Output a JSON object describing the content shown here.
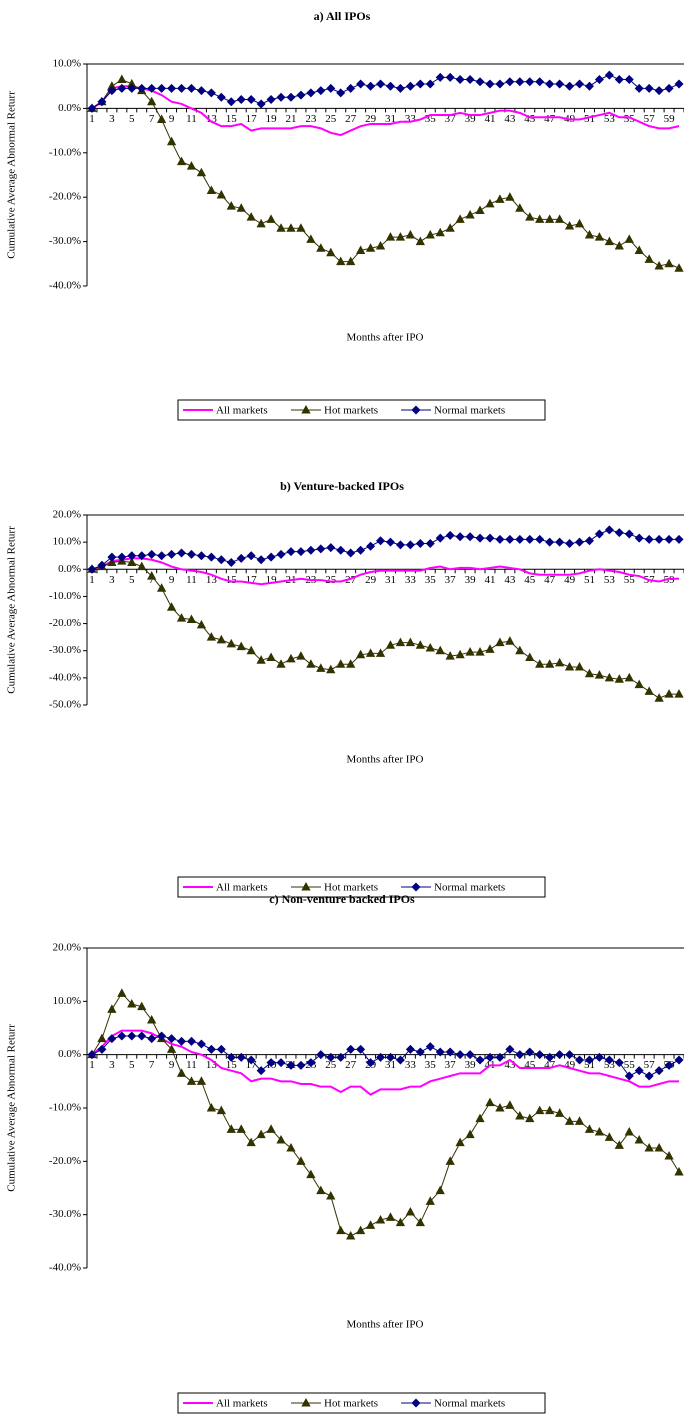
{
  "chart_data": [
    {
      "type": "line",
      "title": "a) All IPOs",
      "y_label": "Cumulative Average Abnormal Returr",
      "x_label": "Months after IPO",
      "legend": "bottom",
      "categories": [
        "1",
        null,
        "3",
        null,
        "5",
        null,
        "7",
        null,
        "9",
        null,
        "11",
        null,
        "13",
        null,
        "15",
        null,
        "17",
        null,
        "19",
        null,
        "21",
        null,
        "23",
        null,
        "25",
        null,
        "27",
        null,
        "29",
        null,
        "31",
        null,
        "33",
        null,
        "35",
        null,
        "37",
        null,
        "39",
        null,
        "41",
        null,
        "43",
        null,
        "45",
        null,
        "47",
        null,
        "49",
        null,
        "51",
        null,
        "53",
        null,
        "55",
        null,
        "57",
        null,
        "59",
        null
      ],
      "ylim": [
        -40,
        10
      ],
      "yticks": [
        {
          "value": 10,
          "label": "10.0%"
        },
        {
          "value": 0,
          "label": "0.0%"
        },
        {
          "value": -10,
          "label": "-10.0%"
        },
        {
          "value": -20,
          "label": "-20.0%"
        },
        {
          "value": -30,
          "label": "-30.0%"
        },
        {
          "value": -40,
          "label": "-40.0%"
        }
      ],
      "series": [
        {
          "name": "All markets",
          "color": "#ff00ff",
          "marker": "none",
          "values": [
            0,
            1.5,
            4.5,
            5,
            5,
            4.5,
            4,
            3,
            1.5,
            1,
            0,
            -1,
            -3,
            -4,
            -4,
            -3.5,
            -5,
            -4.5,
            -4.5,
            -4.5,
            -4.5,
            -4,
            -4,
            -4.5,
            -5.5,
            -6,
            -5,
            -4,
            -3.5,
            -3.5,
            -3.5,
            -3,
            -3,
            -2.5,
            -1.5,
            -1.5,
            -1.5,
            -1,
            -1.5,
            -1.5,
            -1,
            -0.5,
            -0.5,
            -1,
            -2,
            -2,
            -2,
            -2,
            -2.5,
            -2.5,
            -2,
            -1.5,
            -1,
            -2,
            -2,
            -3,
            -4,
            -4.5,
            -4.5,
            -4
          ]
        },
        {
          "name": "Hot markets",
          "color": "#333300",
          "marker": "triangle",
          "values": [
            0,
            1.5,
            5,
            6.5,
            5.5,
            4,
            1.5,
            -2.5,
            -7.5,
            -12,
            -13,
            -14.5,
            -18.5,
            -19.5,
            -22,
            -22.5,
            -24.5,
            -26,
            -25,
            -27,
            -27,
            -27,
            -29.5,
            -31.5,
            -32.5,
            -34.5,
            -34.5,
            -32,
            -31.5,
            -31,
            -29,
            -29,
            -28.5,
            -30,
            -28.5,
            -28,
            -27,
            -25,
            -24,
            -23,
            -21.5,
            -20.5,
            -20,
            -22.5,
            -24.5,
            -25,
            -25,
            -25,
            -26.5,
            -26,
            -28.5,
            -29,
            -30,
            -31,
            -29.5,
            -32,
            -34,
            -35.5,
            -35,
            -36
          ]
        },
        {
          "name": "Normal markets",
          "color": "#000080",
          "marker": "diamond",
          "values": [
            0,
            1.5,
            4,
            4.5,
            4.5,
            4.5,
            4.5,
            4.5,
            4.5,
            4.5,
            4.5,
            4,
            3.5,
            2.5,
            1.5,
            2,
            2,
            1,
            2,
            2.5,
            2.5,
            3,
            3.5,
            4,
            4.5,
            3.5,
            4.5,
            5.5,
            5,
            5.5,
            5,
            4.5,
            5,
            5.5,
            5.5,
            7,
            7,
            6.5,
            6.5,
            6,
            5.5,
            5.5,
            6,
            6,
            6,
            6,
            5.5,
            5.5,
            5,
            5.5,
            5,
            6.5,
            7.5,
            6.5,
            6.5,
            4.5,
            4.5,
            4,
            4.5,
            5.5
          ]
        }
      ]
    },
    {
      "type": "line",
      "title": "b) Venture-backed IPOs",
      "y_label": "Cumulative Average Abnormal Returr",
      "x_label": "Months after IPO",
      "legend": "bottom",
      "categories": [
        "1",
        null,
        "3",
        null,
        "5",
        null,
        "7",
        null,
        "9",
        null,
        "11",
        null,
        "13",
        null,
        "15",
        null,
        "17",
        null,
        "19",
        null,
        "21",
        null,
        "23",
        null,
        "25",
        null,
        "27",
        null,
        "29",
        null,
        "31",
        null,
        "33",
        null,
        "35",
        null,
        "37",
        null,
        "39",
        null,
        "41",
        null,
        "43",
        null,
        "45",
        null,
        "47",
        null,
        "49",
        null,
        "51",
        null,
        "53",
        null,
        "55",
        null,
        "57",
        null,
        "59",
        null
      ],
      "ylim": [
        -50,
        20
      ],
      "yticks": [
        {
          "value": 20,
          "label": "20.0%"
        },
        {
          "value": 10,
          "label": "10.0%"
        },
        {
          "value": 0,
          "label": "0.0%"
        },
        {
          "value": -10,
          "label": "-10.0%"
        },
        {
          "value": -20,
          "label": "-20.0%"
        },
        {
          "value": -30,
          "label": "-30.0%"
        },
        {
          "value": -40,
          "label": "-40.0%"
        },
        {
          "value": -50,
          "label": "-50.0%"
        }
      ],
      "series": [
        {
          "name": "All markets",
          "color": "#ff00ff",
          "marker": "none",
          "values": [
            0,
            1,
            3,
            3.5,
            4,
            4,
            3.5,
            2.5,
            1,
            0,
            -0.5,
            -1,
            -2,
            -3.5,
            -4.5,
            -4.5,
            -5,
            -5.5,
            -5,
            -4.5,
            -4,
            -3.5,
            -4,
            -4,
            -4.5,
            -4.5,
            -3.5,
            -2,
            -1,
            -0.5,
            -0.5,
            -0.5,
            -0.5,
            -0.5,
            0.5,
            1,
            0,
            0.5,
            0.5,
            0,
            0.5,
            1,
            0.5,
            0,
            -1.5,
            -2,
            -2,
            -2,
            -2,
            -1.5,
            -0.5,
            0,
            -0.5,
            -1,
            -2,
            -2.5,
            -4,
            -4.5,
            -3.5,
            -3.5
          ]
        },
        {
          "name": "Hot markets",
          "color": "#333300",
          "marker": "triangle",
          "values": [
            0,
            1,
            2.5,
            3,
            2.5,
            1,
            -2.5,
            -7,
            -14,
            -18,
            -18.5,
            -20.5,
            -25,
            -26,
            -27.5,
            -28.5,
            -30,
            -33.5,
            -32.5,
            -35,
            -33,
            -32,
            -35,
            -36.5,
            -37,
            -35,
            -35,
            -31.5,
            -31,
            -31,
            -28,
            -27,
            -27,
            -28,
            -29,
            -30,
            -32,
            -31.5,
            -30.5,
            -30.5,
            -29.5,
            -27,
            -26.5,
            -30,
            -32.5,
            -35,
            -35,
            -34.5,
            -36,
            -36,
            -38.5,
            -39,
            -40,
            -40.5,
            -40,
            -42.5,
            -45,
            -47.5,
            -46,
            -46
          ]
        },
        {
          "name": "Normal markets",
          "color": "#000080",
          "marker": "diamond",
          "values": [
            0,
            1.5,
            4.5,
            4.5,
            5,
            5,
            5.5,
            5,
            5.5,
            6,
            5.5,
            5,
            4.5,
            3.5,
            2.5,
            4,
            5,
            3.5,
            4.5,
            5.5,
            6.5,
            6.5,
            7,
            7.5,
            8,
            7,
            6,
            7,
            8.5,
            10.5,
            10,
            9,
            9,
            9.5,
            9.5,
            11.5,
            12.5,
            12,
            12,
            11.5,
            11.5,
            11,
            11,
            11,
            11,
            11,
            10,
            10,
            9.5,
            10,
            10.5,
            13,
            14.5,
            13.5,
            13,
            11.5,
            11,
            11,
            11,
            11
          ]
        }
      ]
    },
    {
      "type": "line",
      "title": "c) Non-venture backed IPOs",
      "y_label": "Cumulative Average Abnormal Returr",
      "x_label": "Months after IPO",
      "legend": "bottom",
      "categories": [
        "1",
        null,
        "3",
        null,
        "5",
        null,
        "7",
        null,
        "9",
        null,
        "11",
        null,
        "13",
        null,
        "15",
        null,
        "17",
        null,
        "19",
        null,
        "21",
        null,
        "23",
        null,
        "25",
        null,
        "27",
        null,
        "29",
        null,
        "31",
        null,
        "33",
        null,
        "35",
        null,
        "37",
        null,
        "39",
        null,
        "41",
        null,
        "43",
        null,
        "45",
        null,
        "47",
        null,
        "49",
        null,
        "51",
        null,
        "53",
        null,
        "55",
        null,
        "57",
        null,
        "59",
        null
      ],
      "ylim": [
        -40,
        20
      ],
      "yticks": [
        {
          "value": 20,
          "label": "20.0%"
        },
        {
          "value": 10,
          "label": "10.0%"
        },
        {
          "value": 0,
          "label": "0.0%"
        },
        {
          "value": -10,
          "label": "-10.0%"
        },
        {
          "value": -20,
          "label": "-20.0%"
        },
        {
          "value": -30,
          "label": "-30.0%"
        },
        {
          "value": -40,
          "label": "-40.0%"
        }
      ],
      "series": [
        {
          "name": "All markets",
          "color": "#ff00ff",
          "marker": "none",
          "values": [
            0,
            1.5,
            3.5,
            4.5,
            4.5,
            4.5,
            4,
            3,
            2,
            1.5,
            0.5,
            0,
            -1,
            -2.5,
            -3,
            -3.5,
            -5,
            -4.5,
            -4.5,
            -5,
            -5,
            -5.5,
            -5.5,
            -6,
            -6,
            -7,
            -6,
            -6,
            -7.5,
            -6.5,
            -6.5,
            -6.5,
            -6,
            -6,
            -5,
            -4.5,
            -4,
            -3.5,
            -3.5,
            -3.5,
            -2,
            -2,
            -1,
            -2.5,
            -2.5,
            -2.5,
            -2.5,
            -2,
            -2.5,
            -3,
            -3.5,
            -3.5,
            -4,
            -4.5,
            -5,
            -6,
            -6,
            -5.5,
            -5,
            -5
          ]
        },
        {
          "name": "Hot markets",
          "color": "#333300",
          "marker": "triangle",
          "values": [
            0,
            3,
            8.5,
            11.5,
            9.5,
            9,
            6.5,
            3,
            1,
            -3.5,
            -5,
            -5,
            -10,
            -10.5,
            -14,
            -14,
            -16.5,
            -15,
            -14,
            -16,
            -17.5,
            -20,
            -22.5,
            -25.5,
            -26.5,
            -33,
            -34,
            -33,
            -32,
            -31,
            -30.5,
            -31.5,
            -29.5,
            -31.5,
            -27.5,
            -25.5,
            -20,
            -16.5,
            -15,
            -12,
            -9,
            -10,
            -9.5,
            -11.5,
            -12,
            -10.5,
            -10.5,
            -11,
            -12.5,
            -12.5,
            -14,
            -14.5,
            -15.5,
            -17,
            -14.5,
            -16,
            -17.5,
            -17.5,
            -19,
            -22
          ]
        },
        {
          "name": "Normal markets",
          "color": "#000080",
          "marker": "diamond",
          "values": [
            0,
            1,
            3,
            3.5,
            3.5,
            3.5,
            3,
            3.5,
            3,
            2.5,
            2.5,
            2,
            1,
            1,
            -0.5,
            -0.5,
            -1,
            -3,
            -1.5,
            -1.5,
            -2,
            -2,
            -1.5,
            0,
            -0.5,
            -0.5,
            1,
            1,
            -1.5,
            -0.5,
            -0.5,
            -1,
            1,
            0.5,
            1.5,
            0.5,
            0.5,
            0,
            0,
            -1,
            -0.5,
            -0.5,
            1,
            0,
            0.5,
            0,
            -0.5,
            0,
            0,
            -1,
            -1,
            -0.5,
            -1,
            -1.5,
            -4,
            -3,
            -4,
            -3,
            -2,
            -1
          ]
        }
      ]
    }
  ]
}
